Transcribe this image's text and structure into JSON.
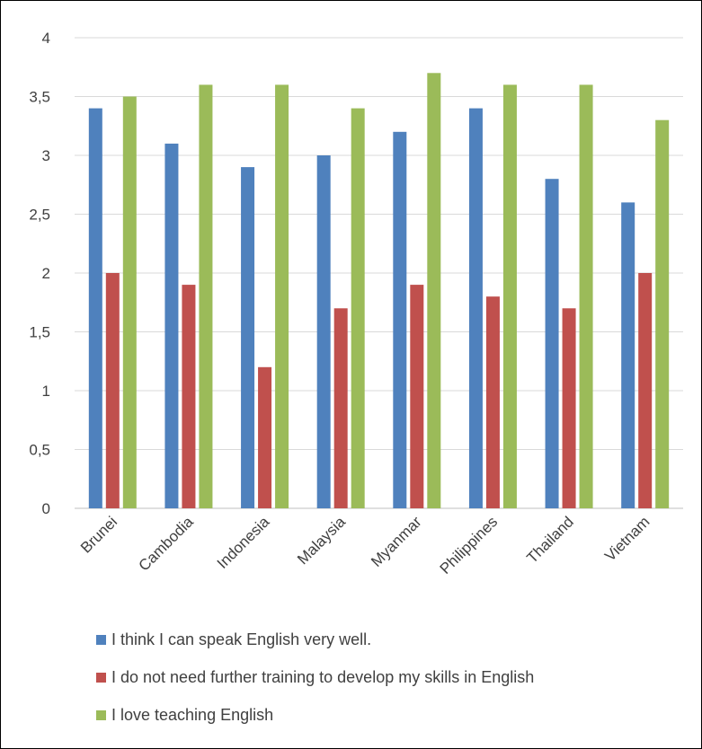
{
  "chart_data": {
    "type": "bar",
    "categories": [
      "Brunei",
      "Cambodia",
      "Indonesia",
      "Malaysia",
      "Myanmar",
      "Philippines",
      "Thailand",
      "Vietnam"
    ],
    "series": [
      {
        "name": "I think I can speak English very well.",
        "color": "#4f81bd",
        "values": [
          3.4,
          3.1,
          2.9,
          3.0,
          3.2,
          3.4,
          2.8,
          2.6
        ]
      },
      {
        "name": "I do not need further training to develop my skills in English",
        "color": "#c0504d",
        "values": [
          2.0,
          1.9,
          1.2,
          1.7,
          1.9,
          1.8,
          1.7,
          2.0
        ]
      },
      {
        "name": "I love teaching English",
        "color": "#9bbb59",
        "values": [
          3.5,
          3.6,
          3.6,
          3.4,
          3.7,
          3.6,
          3.6,
          3.3
        ]
      }
    ],
    "yticks": [
      "0",
      "0,5",
      "1",
      "1,5",
      "2",
      "2,5",
      "3",
      "3,5",
      "4"
    ],
    "ylim": [
      0,
      4
    ],
    "grid": true,
    "legend_position": "bottom"
  }
}
